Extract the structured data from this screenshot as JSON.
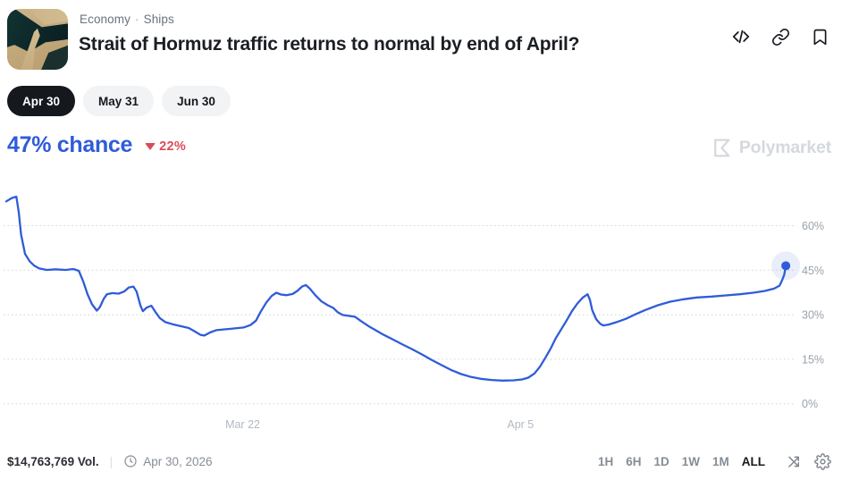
{
  "header": {
    "breadcrumb": {
      "category": "Economy",
      "separator": "·",
      "subcategory": "Ships"
    },
    "title": "Strait of Hormuz traffic returns to normal by end of April?",
    "action_icons": [
      "embed-code-icon",
      "copy-link-icon",
      "bookmark-icon"
    ]
  },
  "outcome_tabs": [
    {
      "label": "Apr 30",
      "selected": true
    },
    {
      "label": "May 31",
      "selected": false
    },
    {
      "label": "Jun 30",
      "selected": false
    }
  ],
  "chance": {
    "value_label": "47% chance",
    "change_value": "22%",
    "change_direction": "down"
  },
  "watermark": {
    "label": "Polymarket"
  },
  "colors": {
    "accent_blue": "#2f5cd8",
    "change_red": "#db4c56",
    "tab_active_bg": "#15181c",
    "gridline": "#cfd3da",
    "watermark_gray": "#d5d8dd"
  },
  "chart_data": {
    "type": "line",
    "title": "Strait of Hormuz traffic returns to normal by end of April? — Apr 30 chance",
    "ylabel": "chance (%)",
    "ylim": [
      0,
      74
    ],
    "grid": "horizontal-dotted",
    "legend": "none",
    "y_ticks": [
      {
        "label": "60%",
        "value": 60
      },
      {
        "label": "45%",
        "value": 45
      },
      {
        "label": "30%",
        "value": 30
      },
      {
        "label": "15%",
        "value": 15
      },
      {
        "label": "0%",
        "value": 0
      }
    ],
    "x_ticks": [
      {
        "label": "Mar 22",
        "pos": 0.303
      },
      {
        "label": "Apr 5",
        "pos": 0.659
      }
    ],
    "end_point": {
      "pos": 0.999,
      "value": 46.5,
      "display": "47%"
    },
    "series": [
      {
        "name": "Apr 30 — Yes",
        "color": "#2f5cd8",
        "points": [
          [
            0.0,
            68.2
          ],
          [
            0.007,
            69.3
          ],
          [
            0.013,
            69.8
          ],
          [
            0.016,
            64.5
          ],
          [
            0.019,
            57.0
          ],
          [
            0.024,
            50.5
          ],
          [
            0.03,
            48.0
          ],
          [
            0.036,
            46.5
          ],
          [
            0.042,
            45.6
          ],
          [
            0.052,
            45.1
          ],
          [
            0.063,
            45.3
          ],
          [
            0.076,
            45.1
          ],
          [
            0.086,
            45.4
          ],
          [
            0.093,
            44.8
          ],
          [
            0.099,
            41.0
          ],
          [
            0.104,
            37.0
          ],
          [
            0.11,
            33.5
          ],
          [
            0.116,
            31.4
          ],
          [
            0.12,
            32.6
          ],
          [
            0.125,
            35.4
          ],
          [
            0.129,
            36.9
          ],
          [
            0.136,
            37.3
          ],
          [
            0.144,
            37.1
          ],
          [
            0.151,
            37.8
          ],
          [
            0.157,
            39.2
          ],
          [
            0.163,
            39.5
          ],
          [
            0.167,
            37.8
          ],
          [
            0.172,
            33.0
          ],
          [
            0.175,
            31.2
          ],
          [
            0.18,
            32.4
          ],
          [
            0.186,
            33.0
          ],
          [
            0.191,
            31.0
          ],
          [
            0.197,
            28.8
          ],
          [
            0.204,
            27.5
          ],
          [
            0.213,
            26.8
          ],
          [
            0.223,
            26.2
          ],
          [
            0.234,
            25.5
          ],
          [
            0.242,
            24.3
          ],
          [
            0.249,
            23.2
          ],
          [
            0.254,
            23.0
          ],
          [
            0.261,
            24.0
          ],
          [
            0.269,
            24.8
          ],
          [
            0.281,
            25.1
          ],
          [
            0.293,
            25.4
          ],
          [
            0.304,
            25.7
          ],
          [
            0.313,
            26.5
          ],
          [
            0.32,
            28.0
          ],
          [
            0.326,
            31.0
          ],
          [
            0.333,
            34.0
          ],
          [
            0.34,
            36.3
          ],
          [
            0.346,
            37.4
          ],
          [
            0.352,
            36.8
          ],
          [
            0.359,
            36.6
          ],
          [
            0.367,
            37.0
          ],
          [
            0.373,
            38.0
          ],
          [
            0.379,
            39.5
          ],
          [
            0.384,
            40.0
          ],
          [
            0.389,
            38.8
          ],
          [
            0.396,
            36.6
          ],
          [
            0.404,
            34.5
          ],
          [
            0.412,
            33.2
          ],
          [
            0.419,
            32.3
          ],
          [
            0.425,
            30.8
          ],
          [
            0.431,
            29.9
          ],
          [
            0.439,
            29.6
          ],
          [
            0.447,
            29.3
          ],
          [
            0.455,
            27.8
          ],
          [
            0.464,
            26.2
          ],
          [
            0.474,
            24.7
          ],
          [
            0.484,
            23.2
          ],
          [
            0.496,
            21.6
          ],
          [
            0.507,
            20.1
          ],
          [
            0.52,
            18.4
          ],
          [
            0.533,
            16.6
          ],
          [
            0.545,
            14.8
          ],
          [
            0.558,
            13.0
          ],
          [
            0.57,
            11.4
          ],
          [
            0.583,
            10.0
          ],
          [
            0.596,
            9.0
          ],
          [
            0.608,
            8.4
          ],
          [
            0.622,
            8.0
          ],
          [
            0.636,
            7.8
          ],
          [
            0.65,
            7.9
          ],
          [
            0.661,
            8.2
          ],
          [
            0.669,
            8.8
          ],
          [
            0.677,
            10.2
          ],
          [
            0.684,
            12.5
          ],
          [
            0.691,
            15.5
          ],
          [
            0.698,
            18.8
          ],
          [
            0.704,
            22.0
          ],
          [
            0.711,
            25.0
          ],
          [
            0.718,
            28.0
          ],
          [
            0.725,
            31.2
          ],
          [
            0.732,
            33.8
          ],
          [
            0.739,
            35.8
          ],
          [
            0.745,
            36.9
          ],
          [
            0.748,
            35.0
          ],
          [
            0.751,
            31.5
          ],
          [
            0.756,
            28.5
          ],
          [
            0.761,
            27.0
          ],
          [
            0.765,
            26.4
          ],
          [
            0.772,
            26.7
          ],
          [
            0.782,
            27.5
          ],
          [
            0.794,
            28.6
          ],
          [
            0.805,
            30.0
          ],
          [
            0.819,
            31.6
          ],
          [
            0.835,
            33.2
          ],
          [
            0.851,
            34.4
          ],
          [
            0.868,
            35.2
          ],
          [
            0.885,
            35.8
          ],
          [
            0.904,
            36.1
          ],
          [
            0.922,
            36.5
          ],
          [
            0.94,
            36.9
          ],
          [
            0.957,
            37.4
          ],
          [
            0.972,
            38.0
          ],
          [
            0.984,
            38.8
          ],
          [
            0.991,
            39.8
          ],
          [
            0.994,
            41.5
          ],
          [
            0.997,
            43.5
          ],
          [
            0.999,
            46.5
          ]
        ]
      }
    ]
  },
  "footer": {
    "volume": "$14,763,769 Vol.",
    "divider": "|",
    "end_date": "Apr 30, 2026",
    "ranges": [
      {
        "label": "1H",
        "active": false
      },
      {
        "label": "6H",
        "active": false
      },
      {
        "label": "1D",
        "active": false
      },
      {
        "label": "1W",
        "active": false
      },
      {
        "label": "1M",
        "active": false
      },
      {
        "label": "ALL",
        "active": true
      }
    ]
  }
}
